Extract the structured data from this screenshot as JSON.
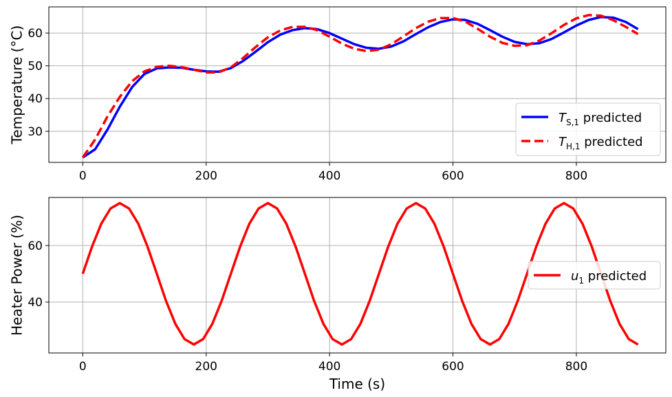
{
  "chart_data": [
    {
      "type": "line",
      "ylabel": "Temperature (°C)",
      "xlabel": "",
      "xlim": [
        -55,
        945
      ],
      "ylim": [
        20.5,
        68
      ],
      "xticks": [
        "0",
        "200",
        "400",
        "600",
        "800"
      ],
      "yticks": [
        "30",
        "40",
        "50",
        "60"
      ],
      "grid": true,
      "legend_position": "lower-right",
      "series": [
        {
          "legend_main": "T",
          "legend_sub": "S,1",
          "legend_suffix": " predicted",
          "color": "#0000ff",
          "style": "solid",
          "x": [
            0,
            20,
            40,
            60,
            80,
            100,
            120,
            140,
            160,
            180,
            200,
            220,
            240,
            260,
            280,
            300,
            320,
            340,
            360,
            380,
            400,
            420,
            440,
            460,
            480,
            500,
            520,
            540,
            560,
            580,
            600,
            620,
            640,
            660,
            680,
            700,
            720,
            740,
            760,
            780,
            800,
            820,
            840,
            860,
            880,
            900
          ],
          "y": [
            22,
            24.5,
            30.5,
            37.5,
            43.5,
            47.5,
            49.2,
            49.5,
            49.4,
            48.8,
            48.3,
            48.2,
            49.3,
            51.5,
            54.3,
            57.2,
            59.5,
            60.9,
            61.5,
            61.2,
            60.0,
            58.3,
            56.6,
            55.5,
            55.2,
            55.9,
            57.5,
            59.7,
            61.8,
            63.4,
            64.2,
            64.0,
            62.8,
            60.9,
            58.9,
            57.3,
            56.6,
            56.9,
            58.2,
            60.2,
            62.3,
            64.0,
            64.9,
            64.7,
            63.4,
            61.2
          ]
        },
        {
          "legend_main": "T",
          "legend_sub": "H,1",
          "legend_suffix": " predicted",
          "color": "#ff0000",
          "style": "dashed",
          "x": [
            0,
            20,
            40,
            60,
            80,
            100,
            120,
            140,
            160,
            180,
            200,
            220,
            240,
            260,
            280,
            300,
            320,
            340,
            360,
            380,
            400,
            420,
            440,
            460,
            480,
            500,
            520,
            540,
            560,
            580,
            600,
            620,
            640,
            660,
            680,
            700,
            720,
            740,
            760,
            780,
            800,
            820,
            840,
            860,
            880,
            900
          ],
          "y": [
            22,
            27.5,
            34.5,
            40.5,
            45.3,
            48.3,
            49.7,
            50.0,
            49.6,
            48.8,
            48.0,
            48.0,
            49.5,
            52.4,
            55.7,
            58.7,
            60.8,
            61.9,
            61.9,
            60.9,
            58.9,
            56.8,
            55.2,
            54.5,
            54.9,
            56.6,
            59.0,
            61.5,
            63.5,
            64.6,
            64.6,
            63.5,
            61.3,
            58.9,
            57.0,
            56.1,
            56.3,
            57.7,
            60.0,
            62.5,
            64.5,
            65.5,
            65.3,
            63.9,
            61.9,
            59.7
          ]
        }
      ]
    },
    {
      "type": "line",
      "ylabel": "Heater Power (%)",
      "xlabel": "Time (s)",
      "xlim": [
        -55,
        945
      ],
      "ylim": [
        22,
        77
      ],
      "xticks": [
        "0",
        "200",
        "400",
        "600",
        "800"
      ],
      "yticks": [
        "40",
        "60"
      ],
      "grid": true,
      "legend_position": "center-right",
      "series": [
        {
          "legend_main": "u",
          "legend_sub": "1",
          "legend_suffix": " predicted",
          "color": "#ff0000",
          "style": "solid",
          "x": [
            0,
            15,
            30,
            45,
            60,
            75,
            90,
            105,
            120,
            135,
            150,
            165,
            180,
            195,
            210,
            225,
            240,
            255,
            270,
            285,
            300,
            315,
            330,
            345,
            360,
            375,
            390,
            405,
            420,
            435,
            450,
            465,
            480,
            495,
            510,
            525,
            540,
            555,
            570,
            585,
            600,
            615,
            630,
            645,
            660,
            675,
            690,
            705,
            720,
            735,
            750,
            765,
            780,
            795,
            810,
            825,
            840,
            855,
            870,
            885,
            900
          ],
          "y": [
            50,
            59.6,
            67.7,
            73.1,
            75,
            73.1,
            67.7,
            59.6,
            50,
            40.4,
            32.3,
            26.9,
            25,
            26.9,
            32.3,
            40.4,
            50,
            59.6,
            67.7,
            73.1,
            75,
            73.1,
            67.7,
            59.6,
            50,
            40.4,
            32.3,
            26.9,
            25,
            26.9,
            32.3,
            40.4,
            50,
            59.6,
            67.7,
            73.1,
            75,
            73.1,
            67.7,
            59.6,
            50,
            40.4,
            32.3,
            26.9,
            25,
            26.9,
            32.3,
            40.4,
            50,
            59.6,
            67.7,
            73.1,
            75,
            73.1,
            67.7,
            59.6,
            50,
            40.4,
            32.3,
            26.9,
            25
          ]
        }
      ]
    }
  ]
}
